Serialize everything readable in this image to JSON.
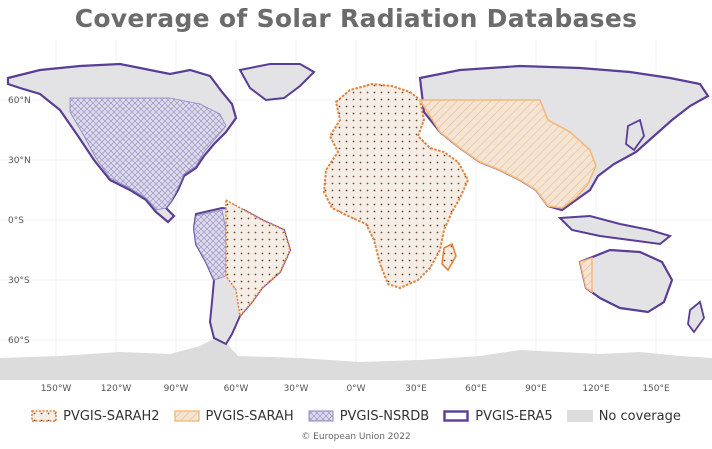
{
  "title": "Coverage of Solar Radiation Databases",
  "lat_labels": [
    "60°N",
    "30°N",
    "0°S",
    "30°S",
    "60°S"
  ],
  "lon_labels": [
    "150°W",
    "120°W",
    "90°W",
    "60°W",
    "30°W",
    "0°W",
    "30°E",
    "60°E",
    "90°E",
    "120°E",
    "150°E"
  ],
  "legend": [
    {
      "label": "PVGIS-SARAH2",
      "style": "sarah2"
    },
    {
      "label": "PVGIS-SARAH",
      "style": "sarah"
    },
    {
      "label": "PVGIS-NSRDB",
      "style": "nsrdb"
    },
    {
      "label": "PVGIS-ERA5",
      "style": "era5"
    },
    {
      "label": "No coverage",
      "style": "none"
    }
  ],
  "colors": {
    "sarah2": "#e2823b",
    "sarah": "#f5b97a",
    "nsrdb": "#8c86c4",
    "era5": "#5a3d96",
    "no_coverage": "#dcdcdc"
  },
  "copyright": "© European Union 2022"
}
